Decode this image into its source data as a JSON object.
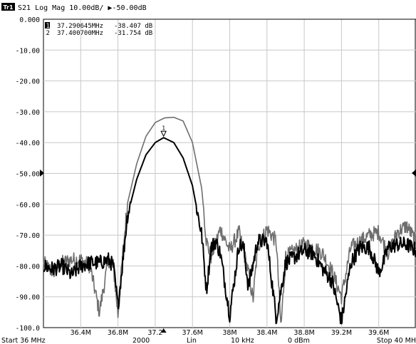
{
  "header": {
    "trace_badge": "Tr1",
    "text": "S21 Log Mag 10.00dB/ ▶-50.00dB"
  },
  "markers": [
    {
      "id": "1",
      "freq": "37.290645MHz",
      "value": "-38.407 dB"
    },
    {
      "id": "2",
      "freq": "37.400700MHz",
      "value": "-31.754 dB"
    }
  ],
  "footer": {
    "start": "Start 36 MHz",
    "points": "2000",
    "scale": "Lin",
    "ifbw": "10 kHz",
    "power": "0 dBm",
    "stop": "Stop 40 MH"
  },
  "colors": {
    "grid": "#c8c8c8",
    "trace_dark": "#000000",
    "trace_gray": "#6e6e6e"
  },
  "chart_data": {
    "type": "line",
    "xlim": [
      36.0,
      40.0
    ],
    "ylim": [
      -100,
      0
    ],
    "yticks": [
      0,
      -10,
      -20,
      -30,
      -40,
      -50,
      -60,
      -70,
      -80,
      -90,
      -100
    ],
    "ytick_labels": [
      "0.000",
      "-10.00",
      "-20.00",
      "-30.00",
      "-40.00",
      "-50.00",
      "-60.00",
      "-70.00",
      "-80.00",
      "-90.00",
      "-100.0"
    ],
    "xticks": [
      36.4,
      36.8,
      37.2,
      37.6,
      38.0,
      38.4,
      38.8,
      39.2,
      39.6
    ],
    "xtick_labels": [
      "36.4M",
      "36.8M",
      "37.2",
      "37.6M",
      "38M",
      "38.4M",
      "38.8M",
      "39.2M",
      "39.6M"
    ],
    "reference_level": -50,
    "grid": true,
    "series": [
      {
        "color": "dark",
        "x": [
          36.0,
          36.1,
          36.2,
          36.3,
          36.4,
          36.5,
          36.6,
          36.7,
          36.75,
          36.8,
          36.85,
          36.9,
          37.0,
          37.1,
          37.2,
          37.29,
          37.4,
          37.5,
          37.6,
          37.7,
          37.75,
          37.8,
          37.85,
          37.9,
          38.0,
          38.1,
          38.15,
          38.2,
          38.3,
          38.4,
          38.5,
          38.6,
          38.7,
          38.8,
          38.9,
          39.0,
          39.1,
          39.2,
          39.3,
          39.4,
          39.5,
          39.6,
          39.65,
          39.7,
          39.8,
          39.9,
          40.0
        ],
        "y": [
          -80,
          -81,
          -80,
          -83,
          -80,
          -79,
          -79,
          -78,
          -80,
          -93,
          -79,
          -64,
          -52,
          -44,
          -40,
          -38.4,
          -40,
          -45,
          -54,
          -70,
          -88,
          -74,
          -72,
          -76,
          -96,
          -73,
          -74,
          -87,
          -72,
          -72,
          -97,
          -79,
          -77,
          -75,
          -76,
          -81,
          -85,
          -98,
          -79,
          -74,
          -74,
          -82,
          -79,
          -74,
          -73,
          -73,
          -75
        ]
      },
      {
        "color": "gray",
        "x": [
          36.0,
          36.1,
          36.2,
          36.3,
          36.4,
          36.5,
          36.6,
          36.7,
          36.75,
          36.8,
          36.85,
          36.9,
          37.0,
          37.1,
          37.2,
          37.3,
          37.4,
          37.5,
          37.6,
          37.7,
          37.75,
          37.8,
          37.9,
          38.0,
          38.1,
          38.2,
          38.25,
          38.3,
          38.4,
          38.5,
          38.55,
          38.6,
          38.7,
          38.8,
          38.9,
          39.0,
          39.1,
          39.2,
          39.25,
          39.3,
          39.4,
          39.5,
          39.6,
          39.7,
          39.8,
          39.9,
          40.0
        ],
        "y": [
          -79,
          -82,
          -79,
          -78,
          -78,
          -80,
          -95,
          -78,
          -80,
          -96,
          -77,
          -60,
          -47,
          -38,
          -33.5,
          -32,
          -31.8,
          -33,
          -40,
          -55,
          -72,
          -77,
          -68,
          -75,
          -69,
          -82,
          -91,
          -74,
          -68,
          -72,
          -100,
          -77,
          -75,
          -73,
          -74,
          -76,
          -82,
          -90,
          -82,
          -74,
          -72,
          -70,
          -69,
          -76,
          -69,
          -67,
          -72
        ]
      }
    ],
    "marker_points": [
      {
        "id": "1",
        "x": 37.29,
        "y": -38.4
      },
      {
        "id": "2",
        "x": 37.4007,
        "y": -31.754
      }
    ]
  }
}
